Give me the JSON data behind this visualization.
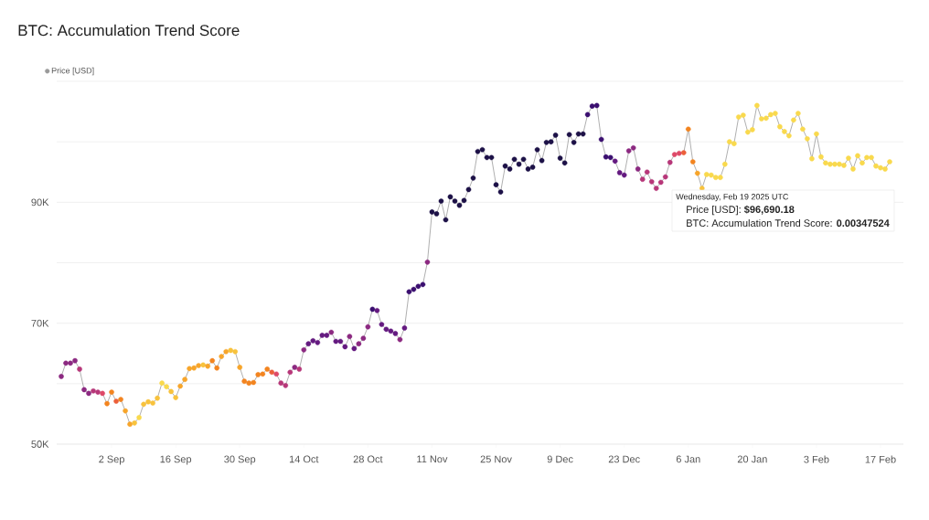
{
  "chart_data": {
    "type": "line",
    "title": "BTC: Accumulation Trend Score",
    "x": [
      "2024-08-22",
      "2024-08-23",
      "2024-08-24",
      "2024-08-25",
      "2024-08-26",
      "2024-08-27",
      "2024-08-28",
      "2024-08-29",
      "2024-08-30",
      "2024-08-31",
      "2024-09-01",
      "2024-09-02",
      "2024-09-03",
      "2024-09-04",
      "2024-09-05",
      "2024-09-06",
      "2024-09-07",
      "2024-09-08",
      "2024-09-09",
      "2024-09-10",
      "2024-09-11",
      "2024-09-12",
      "2024-09-13",
      "2024-09-14",
      "2024-09-15",
      "2024-09-16",
      "2024-09-17",
      "2024-09-18",
      "2024-09-19",
      "2024-09-20",
      "2024-09-21",
      "2024-09-22",
      "2024-09-23",
      "2024-09-24",
      "2024-09-25",
      "2024-09-26",
      "2024-09-27",
      "2024-09-28",
      "2024-09-29",
      "2024-09-30",
      "2024-10-01",
      "2024-10-02",
      "2024-10-03",
      "2024-10-04",
      "2024-10-05",
      "2024-10-06",
      "2024-10-07",
      "2024-10-08",
      "2024-10-09",
      "2024-10-10",
      "2024-10-11",
      "2024-10-12",
      "2024-10-13",
      "2024-10-14",
      "2024-10-15",
      "2024-10-16",
      "2024-10-17",
      "2024-10-18",
      "2024-10-19",
      "2024-10-20",
      "2024-10-21",
      "2024-10-22",
      "2024-10-23",
      "2024-10-24",
      "2024-10-25",
      "2024-10-26",
      "2024-10-27",
      "2024-10-28",
      "2024-10-29",
      "2024-10-30",
      "2024-10-31",
      "2024-11-01",
      "2024-11-02",
      "2024-11-03",
      "2024-11-04",
      "2024-11-05",
      "2024-11-06",
      "2024-11-07",
      "2024-11-08",
      "2024-11-09",
      "2024-11-10",
      "2024-11-11",
      "2024-11-12",
      "2024-11-13",
      "2024-11-14",
      "2024-11-15",
      "2024-11-16",
      "2024-11-17",
      "2024-11-18",
      "2024-11-19",
      "2024-11-20",
      "2024-11-21",
      "2024-11-22",
      "2024-11-23",
      "2024-11-24",
      "2024-11-25",
      "2024-11-26",
      "2024-11-27",
      "2024-11-28",
      "2024-11-29",
      "2024-11-30",
      "2024-12-01",
      "2024-12-02",
      "2024-12-03",
      "2024-12-04",
      "2024-12-05",
      "2024-12-06",
      "2024-12-07",
      "2024-12-08",
      "2024-12-09",
      "2024-12-10",
      "2024-12-11",
      "2024-12-12",
      "2024-12-13",
      "2024-12-14",
      "2024-12-15",
      "2024-12-16",
      "2024-12-17",
      "2024-12-18",
      "2024-12-19",
      "2024-12-20",
      "2024-12-21",
      "2024-12-22",
      "2024-12-23",
      "2024-12-24",
      "2024-12-25",
      "2024-12-26",
      "2024-12-27",
      "2024-12-28",
      "2024-12-29",
      "2024-12-30",
      "2024-12-31",
      "2025-01-01",
      "2025-01-02",
      "2025-01-03",
      "2025-01-04",
      "2025-01-05",
      "2025-01-06",
      "2025-01-07",
      "2025-01-08",
      "2025-01-09",
      "2025-01-10",
      "2025-01-11",
      "2025-01-12",
      "2025-01-13",
      "2025-01-14",
      "2025-01-15",
      "2025-01-16",
      "2025-01-17",
      "2025-01-18",
      "2025-01-19",
      "2025-01-20",
      "2025-01-21",
      "2025-01-22",
      "2025-01-23",
      "2025-01-24",
      "2025-01-25",
      "2025-01-26",
      "2025-01-27",
      "2025-01-28",
      "2025-01-29",
      "2025-01-30",
      "2025-01-31",
      "2025-02-01",
      "2025-02-02",
      "2025-02-03",
      "2025-02-04",
      "2025-02-05",
      "2025-02-06",
      "2025-02-07",
      "2025-02-08",
      "2025-02-09",
      "2025-02-10",
      "2025-02-11",
      "2025-02-12",
      "2025-02-13",
      "2025-02-14",
      "2025-02-15",
      "2025-02-16",
      "2025-02-17",
      "2025-02-18",
      "2025-02-19"
    ],
    "series": [
      {
        "name": "Price [USD]",
        "color": "#9a9a9a",
        "values": [
          61200,
          63400,
          63400,
          63800,
          62400,
          59000,
          58400,
          58800,
          58600,
          58400,
          56700,
          58600,
          57100,
          57400,
          55500,
          53300,
          53500,
          54400,
          56600,
          57000,
          56800,
          57600,
          60100,
          59500,
          58700,
          57700,
          59600,
          60700,
          62500,
          62600,
          63000,
          63100,
          62900,
          63800,
          62600,
          64500,
          65300,
          65500,
          65300,
          62700,
          60400,
          60100,
          60200,
          61500,
          61600,
          62400,
          61900,
          61600,
          60100,
          59700,
          61900,
          62700,
          62400,
          65600,
          66600,
          67100,
          66800,
          68000,
          68000,
          68500,
          67000,
          67000,
          66100,
          67800,
          65800,
          66600,
          67500,
          69400,
          72300,
          72100,
          69800,
          69000,
          68700,
          68300,
          67300,
          69200,
          75200,
          75600,
          76100,
          76400,
          80100,
          88400,
          88100,
          90200,
          87100,
          90900,
          90200,
          89500,
          90300,
          92100,
          94000,
          98400,
          98700,
          97400,
          97400,
          92900,
          91700,
          96000,
          95500,
          97100,
          96300,
          97100,
          95500,
          95800,
          98700,
          96900,
          99900,
          100000,
          101100,
          97300,
          96500,
          101200,
          99900,
          101300,
          101300,
          104500,
          105900,
          106000,
          100400,
          97500,
          97400,
          96800,
          94900,
          94500,
          98500,
          99000,
          95500,
          93800,
          95000,
          93400,
          92300,
          93300,
          94200,
          96600,
          97900,
          98100,
          98200,
          102100,
          96700,
          94800,
          92300,
          94600,
          94500,
          94100,
          94100,
          96300,
          100000,
          99700,
          104100,
          104400,
          101600,
          102000,
          106000,
          103800,
          103900,
          104500,
          104700,
          102500,
          101700,
          101000,
          103600,
          104700,
          102100,
          100500,
          97200,
          101300,
          97500,
          96500,
          96300,
          96300,
          96300,
          96100,
          97300,
          95500,
          97700,
          96500,
          97400,
          97400,
          96000,
          95700,
          95500,
          96700
        ],
        "colors": [
          "#8c2981",
          "#8c2981",
          "#8c2981",
          "#8c2981",
          "#b73779",
          "#8c2981",
          "#8c2981",
          "#b73779",
          "#b73779",
          "#de4968",
          "#f3841f",
          "#f3841f",
          "#ec5f3a",
          "#f3841f",
          "#f7a52a",
          "#f7a52a",
          "#f8c23c",
          "#f9d94d",
          "#f8c23c",
          "#f8c23c",
          "#f8c23c",
          "#f8c23c",
          "#f9d94d",
          "#f9d94d",
          "#f8c23c",
          "#f8c23c",
          "#f7a52a",
          "#f7a52a",
          "#f7a52a",
          "#f7a52a",
          "#f7a52a",
          "#f8c23c",
          "#f7a52a",
          "#f3841f",
          "#f3841f",
          "#f7a52a",
          "#f7a52a",
          "#f8c23c",
          "#f8c23c",
          "#f7a52a",
          "#f3841f",
          "#f3841f",
          "#f3841f",
          "#f3841f",
          "#f3841f",
          "#f3841f",
          "#ec5f3a",
          "#de4968",
          "#b73779",
          "#b73779",
          "#b73779",
          "#8c2981",
          "#b73779",
          "#8c2981",
          "#641a80",
          "#641a80",
          "#641a80",
          "#641a80",
          "#641a80",
          "#8c2981",
          "#641a80",
          "#641a80",
          "#641a80",
          "#8c2981",
          "#641a80",
          "#8c2981",
          "#8c2981",
          "#8c2981",
          "#3b0f70",
          "#641a80",
          "#641a80",
          "#641a80",
          "#641a80",
          "#641a80",
          "#8c2981",
          "#641a80",
          "#3b0f70",
          "#3b0f70",
          "#3b0f70",
          "#3b0f70",
          "#8c2981",
          "#1d1147",
          "#1d1147",
          "#1d1147",
          "#1d1147",
          "#1d1147",
          "#1d1147",
          "#1d1147",
          "#1d1147",
          "#1d1147",
          "#1d1147",
          "#1d1147",
          "#1d1147",
          "#1d1147",
          "#1d1147",
          "#1d1147",
          "#1d1147",
          "#1d1147",
          "#1d1147",
          "#1d1147",
          "#1d1147",
          "#1d1147",
          "#1d1147",
          "#1d1147",
          "#1d1147",
          "#1d1147",
          "#1d1147",
          "#1d1147",
          "#1d1147",
          "#1d1147",
          "#1d1147",
          "#1d1147",
          "#1d1147",
          "#1d1147",
          "#1d1147",
          "#3b0f70",
          "#3b0f70",
          "#3b0f70",
          "#3b0f70",
          "#3b0f70",
          "#3b0f70",
          "#641a80",
          "#641a80",
          "#641a80",
          "#8c2981",
          "#8c2981",
          "#8c2981",
          "#b73779",
          "#b73779",
          "#b73779",
          "#b73779",
          "#b73779",
          "#b73779",
          "#b73779",
          "#de4968",
          "#de4968",
          "#ec5f3a",
          "#f3841f",
          "#f3841f",
          "#f7a52a",
          "#f8c23c",
          "#f9d94d",
          "#f9d94d",
          "#f9d94d",
          "#f9d94d",
          "#f9d94d",
          "#f9d94d",
          "#f9d94d",
          "#f9d94d",
          "#f9d94d",
          "#f9d94d",
          "#f9d94d",
          "#f9d94d",
          "#f9d94d",
          "#f9d94d",
          "#f9d94d",
          "#f9d94d",
          "#f9d94d",
          "#f9d94d",
          "#f9d94d",
          "#f9d94d",
          "#f9d94d",
          "#f9d94d",
          "#f9d94d",
          "#f9d94d",
          "#f9d94d",
          "#f9d94d",
          "#f9d94d",
          "#f9d94d",
          "#f9d94d",
          "#f9d94d",
          "#f9d94d",
          "#f9d94d",
          "#f9d94d",
          "#f9d94d",
          "#f9d94d",
          "#f9d94d",
          "#f9d94d",
          "#f9d94d",
          "#f9d94d",
          "#f9d94d",
          "#f9d94d"
        ]
      }
    ],
    "xlim": [
      "2024-08-21",
      "2025-02-22"
    ],
    "xticks": [
      {
        "value": "2024-09-02",
        "label": "2 Sep"
      },
      {
        "value": "2024-09-16",
        "label": "16 Sep"
      },
      {
        "value": "2024-09-30",
        "label": "30 Sep"
      },
      {
        "value": "2024-10-14",
        "label": "14 Oct"
      },
      {
        "value": "2024-10-28",
        "label": "28 Oct"
      },
      {
        "value": "2024-11-11",
        "label": "11 Nov"
      },
      {
        "value": "2024-11-25",
        "label": "25 Nov"
      },
      {
        "value": "2024-12-09",
        "label": "9 Dec"
      },
      {
        "value": "2024-12-23",
        "label": "23 Dec"
      },
      {
        "value": "2025-01-06",
        "label": "6 Jan"
      },
      {
        "value": "2025-01-20",
        "label": "20 Jan"
      },
      {
        "value": "2025-02-03",
        "label": "3 Feb"
      },
      {
        "value": "2025-02-17",
        "label": "17 Feb"
      }
    ],
    "ylim": [
      50000,
      110000
    ],
    "yticks": [
      {
        "value": 50000,
        "label": "50K"
      },
      {
        "value": 60000,
        "label": null
      },
      {
        "value": 70000,
        "label": "70K"
      },
      {
        "value": 80000,
        "label": null
      },
      {
        "value": 90000,
        "label": "90K"
      },
      {
        "value": 100000,
        "label": null
      },
      {
        "value": 110000,
        "label": null
      }
    ],
    "grid": "y",
    "legend": "top left",
    "marker": "circle",
    "line_style": "solid",
    "annotations": [
      "Wednesday, Feb 19 2025 UTC",
      "Price [USD]: **$96,690.18**",
      "BTC: Accumulation Trend Score: **0.00347524**"
    ]
  }
}
